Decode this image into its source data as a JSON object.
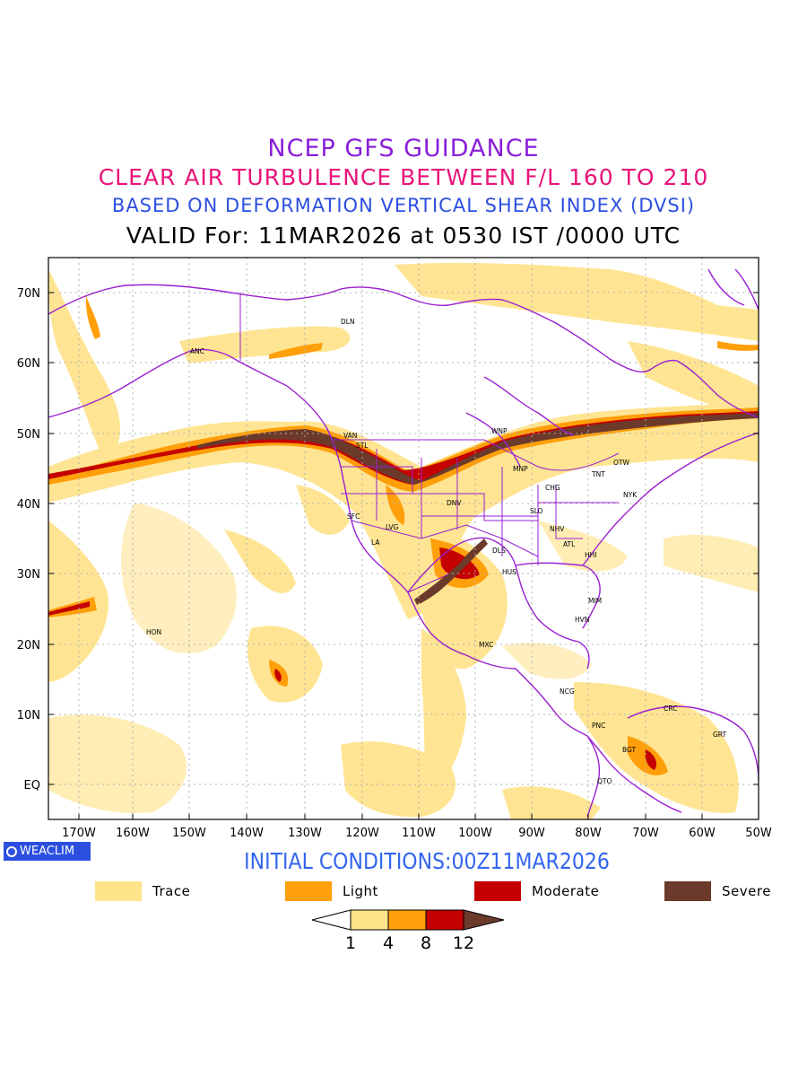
{
  "titles": {
    "line1": "NCEP GFS GUIDANCE",
    "line2": "CLEAR AIR TURBULENCE BETWEEN F/L 160 TO 210",
    "line3": "BASED ON DEFORMATION VERTICAL SHEAR INDEX (DVSI)",
    "line4": "VALID For: 11MAR2026 at 0530 IST /0000 UTC"
  },
  "title_colors": {
    "line1": "#8a1fd8",
    "line2": "#e8147a",
    "line3": "#2c4fe0",
    "line4": "#000000"
  },
  "lat_labels": [
    "70N",
    "60N",
    "50N",
    "40N",
    "30N",
    "20N",
    "10N",
    "EQ"
  ],
  "lon_labels": [
    "170W",
    "160W",
    "150W",
    "140W",
    "130W",
    "120W",
    "110W",
    "100W",
    "90W",
    "80W",
    "70W",
    "60W",
    "50W"
  ],
  "cities": [
    "DLN",
    "ANC",
    "VAN",
    "STL",
    "WNP",
    "MNP",
    "TNT",
    "OTW",
    "NYK",
    "CHG",
    "DNV",
    "SLO",
    "SFC",
    "LVG",
    "LA",
    "NHV",
    "ATL",
    "DLS",
    "HHI",
    "HUS",
    "MIM",
    "HVN",
    "HON",
    "MXC",
    "NCG",
    "CRC",
    "PNC",
    "GRT",
    "BGT",
    "QTO"
  ],
  "badge": "WEACLIM",
  "initial_conditions": "INITIAL CONDITIONS:00Z11MAR2026",
  "legend": [
    {
      "label": "Trace",
      "color": "#ffe38a"
    },
    {
      "label": "Light",
      "color": "#ff9f0a"
    },
    {
      "label": "Moderate",
      "color": "#c40000"
    },
    {
      "label": "Severe",
      "color": "#6b3a2b"
    }
  ],
  "colorbar_labels": [
    "1",
    "4",
    "8",
    "12"
  ],
  "colors": {
    "border": "#9a1fd0",
    "grid": "#b0b0b0",
    "ic": "#3366ee"
  }
}
